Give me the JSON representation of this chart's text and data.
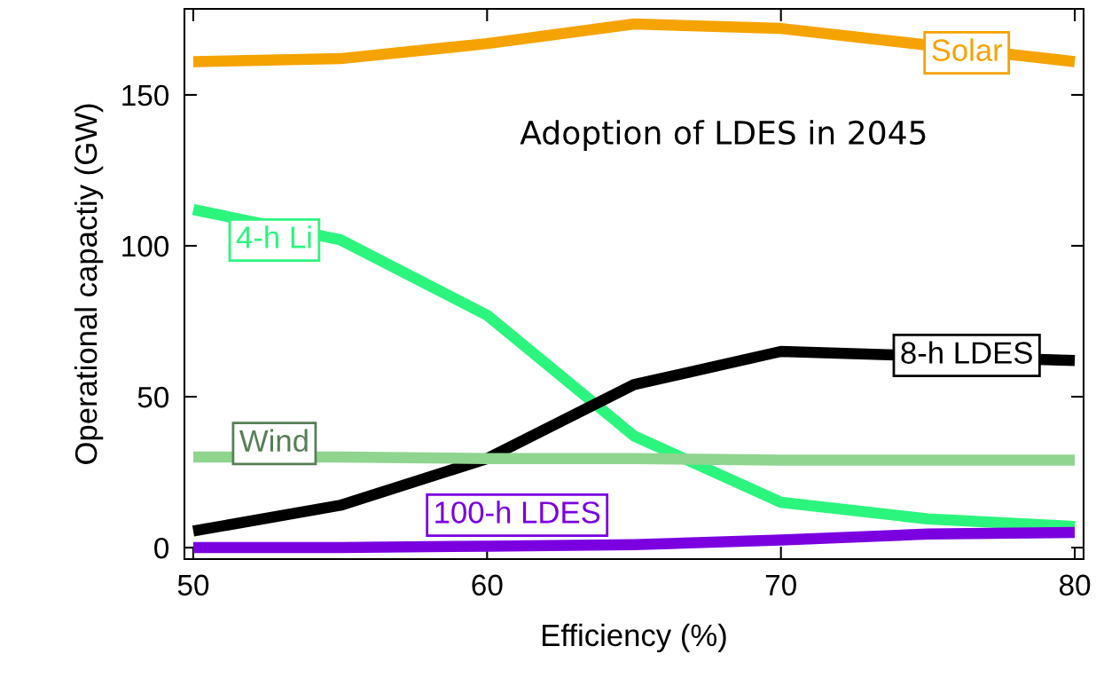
{
  "chart_data": {
    "type": "line",
    "title": "Adoption of LDES in 2045",
    "xlabel": "Efficiency (%)",
    "ylabel": "Operational capactiy (GW)",
    "x": [
      50,
      55,
      60,
      65,
      70,
      75,
      80
    ],
    "series": [
      {
        "name": "Solar",
        "color": "#f5a300",
        "x": [
          50,
          55,
          60,
          65,
          70,
          80
        ],
        "values": [
          161,
          162,
          167,
          173.5,
          172,
          161
        ]
      },
      {
        "name": "4-h Li",
        "color": "#2cf57e",
        "values": [
          112,
          102,
          77,
          37,
          15,
          9.5,
          7
        ]
      },
      {
        "name": "8-h LDES",
        "color": "#000000",
        "x": [
          50,
          55,
          60,
          65,
          70,
          80
        ],
        "values": [
          5.5,
          14,
          29.5,
          54,
          65,
          62
        ]
      },
      {
        "name": "Wind",
        "color": "#8fd48f",
        "values": [
          30,
          30,
          29.5,
          29.5,
          29,
          29,
          29
        ]
      },
      {
        "name": "100-h LDES",
        "color": "#7a00e0",
        "values": [
          0,
          0,
          0.5,
          1,
          2.5,
          4.5,
          5
        ]
      }
    ],
    "xlim": [
      49.7,
      80.3
    ],
    "ylim": [
      -3.8,
      178.5
    ],
    "xticks": [
      50,
      60,
      70,
      80
    ],
    "yticks": [
      0,
      50,
      100,
      150
    ],
    "grid": false,
    "legend": false,
    "marker": "none",
    "line_style": "solid"
  }
}
